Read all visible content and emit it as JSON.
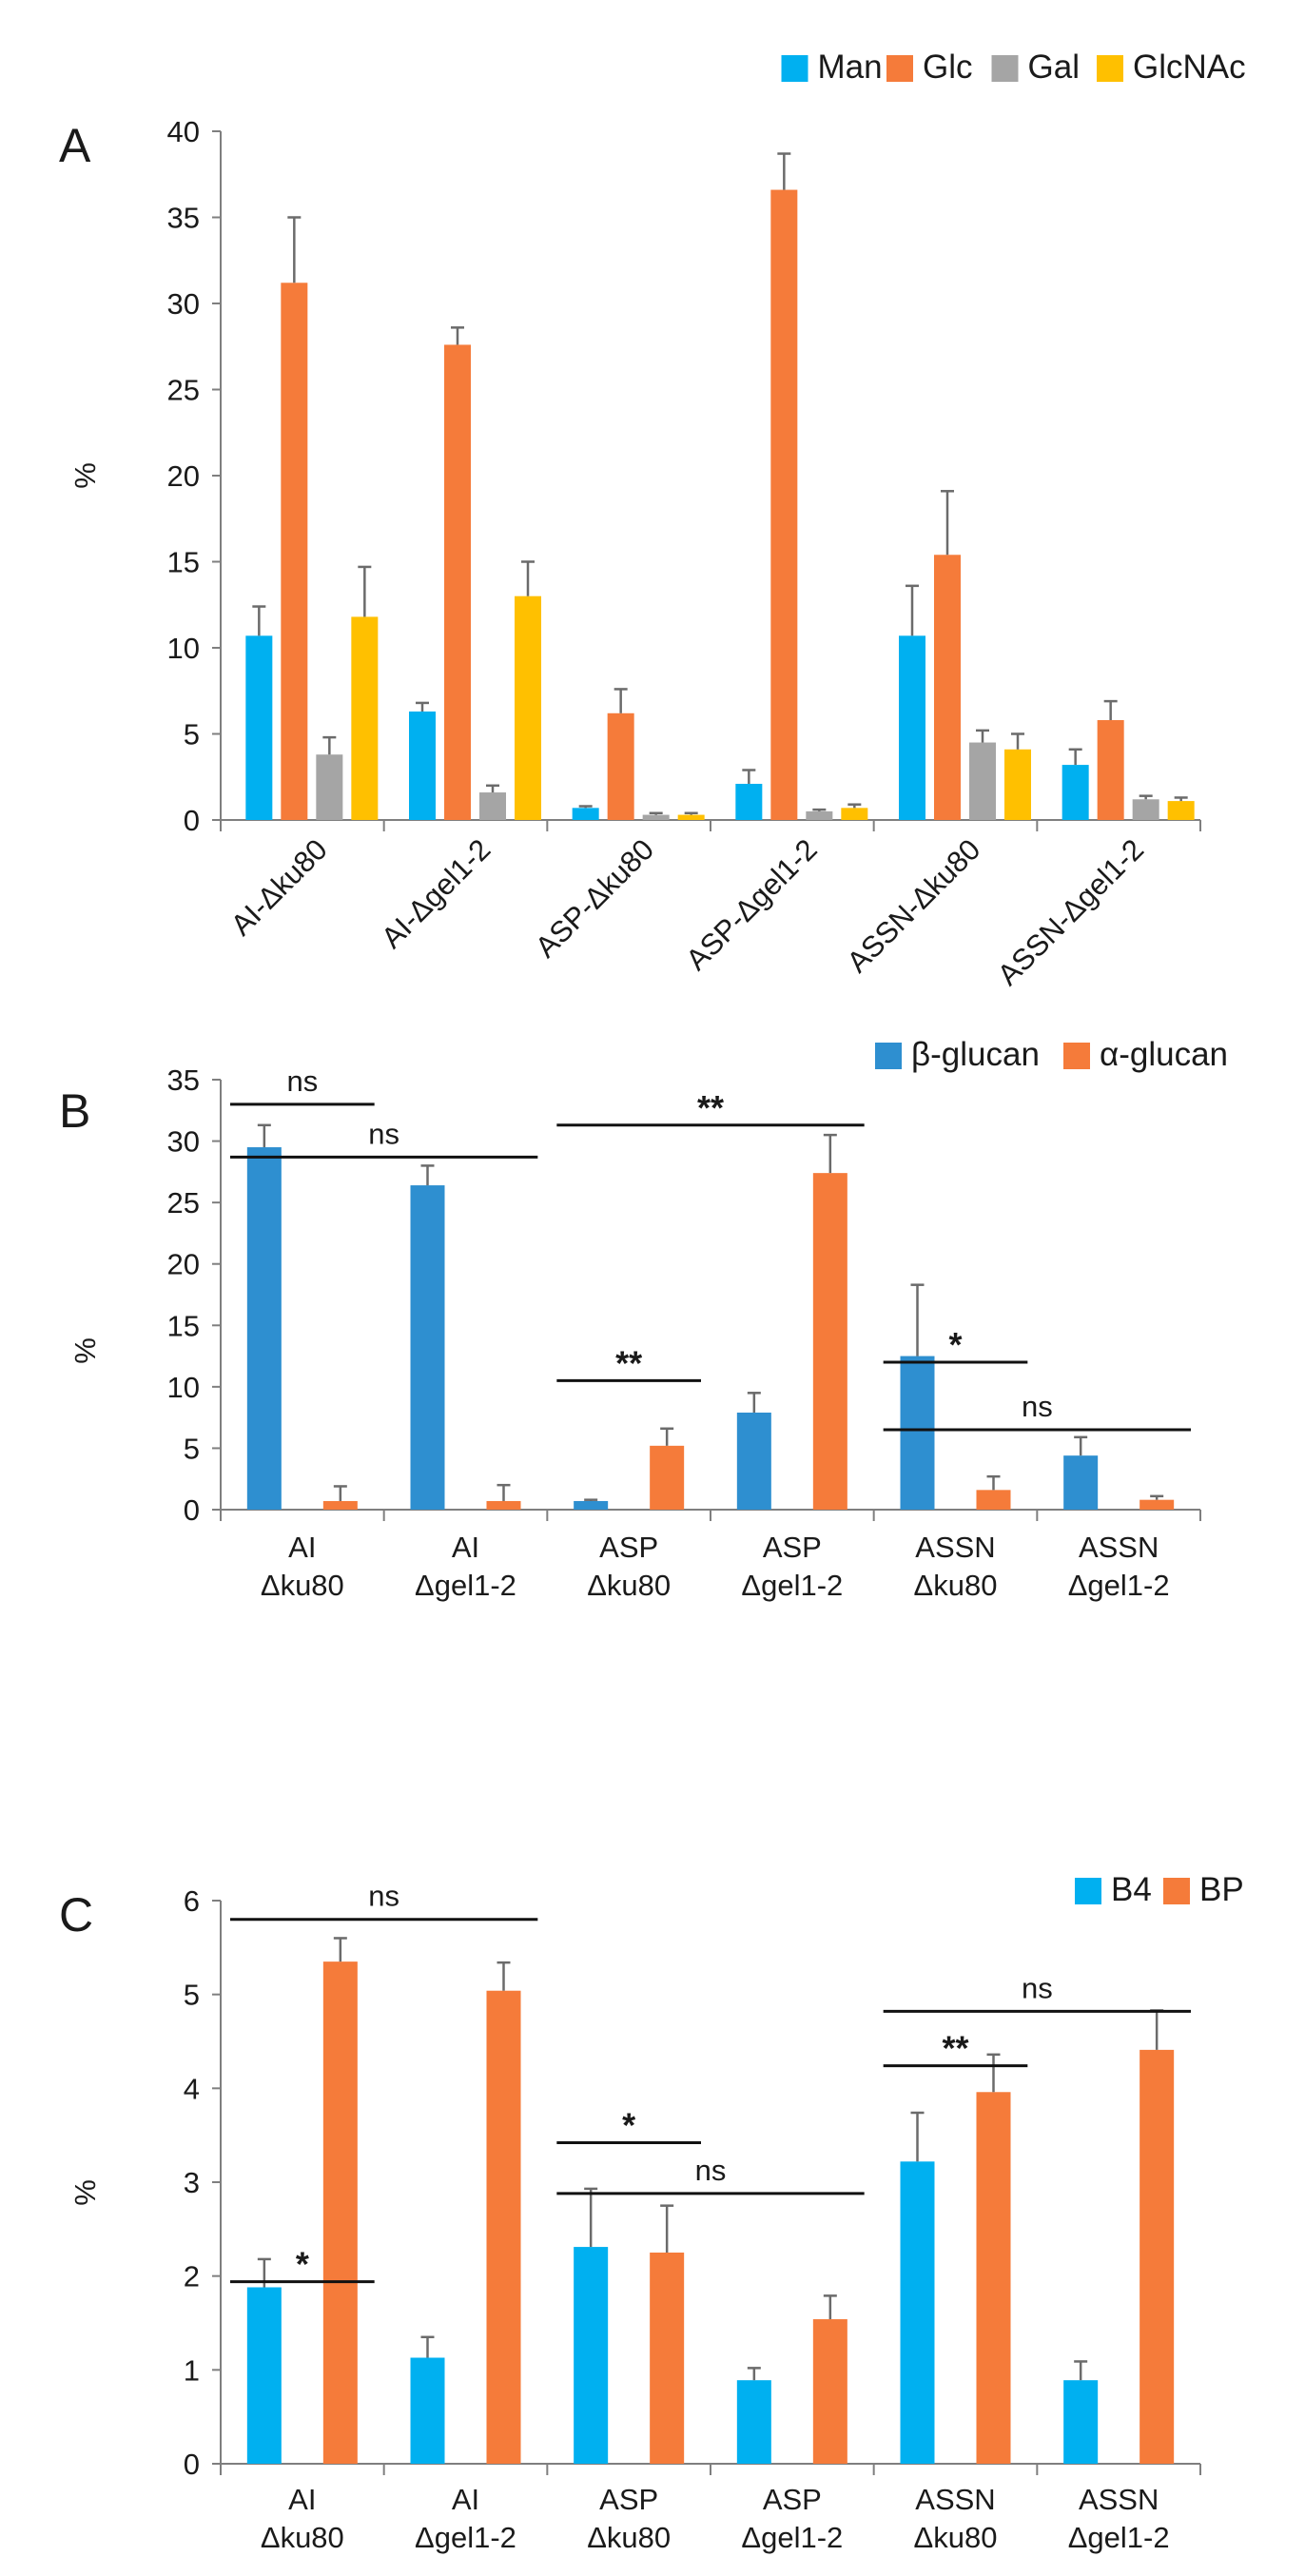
{
  "chart_data": [
    {
      "type": "bar",
      "panel": "A",
      "ylabel": "%",
      "ylim": [
        0,
        40
      ],
      "yticks": [
        0,
        5,
        10,
        15,
        20,
        25,
        30,
        35,
        40
      ],
      "category_label_style": "rotated",
      "categories": [
        [
          "AI-Δku80"
        ],
        [
          "AI-Δgel1-2"
        ],
        [
          "ASP-Δku80"
        ],
        [
          "ASP-Δgel1-2"
        ],
        [
          "ASSN-Δku80"
        ],
        [
          "ASSN-Δgel1-2"
        ]
      ],
      "legend_position": "top-right",
      "series": [
        {
          "name": "Man",
          "color": "#00b0f0",
          "values": [
            10.7,
            6.3,
            0.7,
            2.1,
            10.7,
            3.2
          ],
          "errors": [
            1.7,
            0.5,
            0.1,
            0.8,
            2.9,
            0.9
          ]
        },
        {
          "name": "Glc",
          "color": "#f57b3a",
          "values": [
            31.2,
            27.6,
            6.2,
            36.6,
            15.4,
            5.8
          ],
          "errors": [
            3.8,
            1.0,
            1.4,
            2.1,
            3.7,
            1.1
          ]
        },
        {
          "name": "Gal",
          "color": "#a5a5a5",
          "values": [
            3.8,
            1.6,
            0.3,
            0.5,
            4.5,
            1.2
          ],
          "errors": [
            1.0,
            0.4,
            0.1,
            0.1,
            0.7,
            0.2
          ]
        },
        {
          "name": "GlcNAc",
          "color": "#ffc000",
          "values": [
            11.8,
            13.0,
            0.3,
            0.7,
            4.1,
            1.1
          ],
          "errors": [
            2.9,
            2.0,
            0.1,
            0.2,
            0.9,
            0.2
          ]
        }
      ],
      "significance": []
    },
    {
      "type": "bar",
      "panel": "B",
      "ylabel": "%",
      "ylim": [
        0,
        35
      ],
      "yticks": [
        0,
        5,
        10,
        15,
        20,
        25,
        30,
        35
      ],
      "category_label_style": "two-line",
      "categories": [
        [
          "AI",
          "Δku80"
        ],
        [
          "AI",
          "Δgel1-2"
        ],
        [
          "ASP",
          "Δku80"
        ],
        [
          "ASP",
          "Δgel1-2"
        ],
        [
          "ASSN",
          "Δku80"
        ],
        [
          "ASSN",
          "Δgel1-2"
        ]
      ],
      "legend_position": "top-right",
      "series": [
        {
          "name": "β-glucan",
          "color": "#2e8fd0",
          "values": [
            29.5,
            26.4,
            0.7,
            7.9,
            12.5,
            4.4
          ],
          "errors": [
            1.8,
            1.6,
            0.1,
            1.6,
            5.8,
            1.5
          ]
        },
        {
          "name": "α-glucan",
          "color": "#f57b3a",
          "values": [
            0.7,
            0.7,
            5.2,
            27.4,
            1.6,
            0.8
          ],
          "errors": [
            1.2,
            1.3,
            1.4,
            3.1,
            1.1,
            0.3
          ]
        }
      ],
      "significance": [
        {
          "label": "ns",
          "from": 0,
          "to": 1,
          "y": 33.0
        },
        {
          "label": "ns",
          "from": 0,
          "to": 2,
          "y": 28.7
        },
        {
          "label": "**",
          "from": 2,
          "to": 4,
          "y": 31.3
        },
        {
          "label": "**",
          "from": 2,
          "to": 3,
          "y": 10.5
        },
        {
          "label": "*",
          "from": 4,
          "to": 5,
          "y": 12.0
        },
        {
          "label": "ns",
          "from": 4,
          "to": 6,
          "y": 6.5
        }
      ]
    },
    {
      "type": "bar",
      "panel": "C",
      "ylabel": "%",
      "ylim": [
        0,
        6
      ],
      "yticks": [
        0,
        1,
        2,
        3,
        4,
        5,
        6
      ],
      "category_label_style": "two-line",
      "categories": [
        [
          "AI",
          "Δku80"
        ],
        [
          "AI",
          "Δgel1-2"
        ],
        [
          "ASP",
          "Δku80"
        ],
        [
          "ASP",
          "Δgel1-2"
        ],
        [
          "ASSN",
          "Δku80"
        ],
        [
          "ASSN",
          "Δgel1-2"
        ]
      ],
      "legend_position": "top-right",
      "series": [
        {
          "name": "B4",
          "color": "#00b0f0",
          "values": [
            1.88,
            1.13,
            2.31,
            0.89,
            3.22,
            0.89
          ],
          "errors": [
            0.3,
            0.22,
            0.62,
            0.13,
            0.52,
            0.2
          ]
        },
        {
          "name": "BP",
          "color": "#f57b3a",
          "values": [
            5.35,
            5.04,
            2.25,
            1.54,
            3.96,
            4.41
          ],
          "errors": [
            0.25,
            0.3,
            0.5,
            0.25,
            0.4,
            0.42
          ]
        }
      ],
      "significance": [
        {
          "label": "ns",
          "from": 0,
          "to": 2,
          "y": 5.8
        },
        {
          "label": "*",
          "from": 0,
          "to": 1,
          "y": 1.94
        },
        {
          "label": "*",
          "from": 2,
          "to": 3,
          "y": 3.42
        },
        {
          "label": "ns",
          "from": 2,
          "to": 4,
          "y": 2.88
        },
        {
          "label": "**",
          "from": 4,
          "to": 5,
          "y": 4.24
        },
        {
          "label": "ns",
          "from": 4,
          "to": 6,
          "y": 4.82
        }
      ]
    }
  ]
}
